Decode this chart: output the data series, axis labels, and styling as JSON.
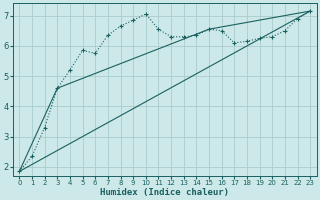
{
  "xlabel": "Humidex (Indice chaleur)",
  "bg_color": "#cce8e8",
  "grid_color": "#aacccc",
  "line_color": "#1a6060",
  "xlim": [
    -0.5,
    23.5
  ],
  "ylim": [
    1.7,
    7.4
  ],
  "yticks": [
    2,
    3,
    4,
    5,
    6,
    7
  ],
  "xticks": [
    0,
    1,
    2,
    3,
    4,
    5,
    6,
    7,
    8,
    9,
    10,
    11,
    12,
    13,
    14,
    15,
    16,
    17,
    18,
    19,
    20,
    21,
    22,
    23
  ],
  "series1_x": [
    0,
    1,
    2,
    3,
    4,
    5,
    6,
    7,
    8,
    9,
    10,
    11,
    12,
    13,
    14,
    15,
    16,
    17,
    18,
    19,
    20,
    21,
    22,
    23
  ],
  "series1_y": [
    1.85,
    2.35,
    3.3,
    4.6,
    5.2,
    5.85,
    5.75,
    6.35,
    6.65,
    6.85,
    7.05,
    6.55,
    6.3,
    6.3,
    6.35,
    6.55,
    6.5,
    6.1,
    6.15,
    6.25,
    6.3,
    6.5,
    6.9,
    7.15
  ],
  "series2_x": [
    0,
    3,
    15,
    23
  ],
  "series2_y": [
    1.85,
    4.6,
    6.55,
    7.15
  ],
  "series3_x": [
    0,
    23
  ],
  "series3_y": [
    1.85,
    7.15
  ]
}
